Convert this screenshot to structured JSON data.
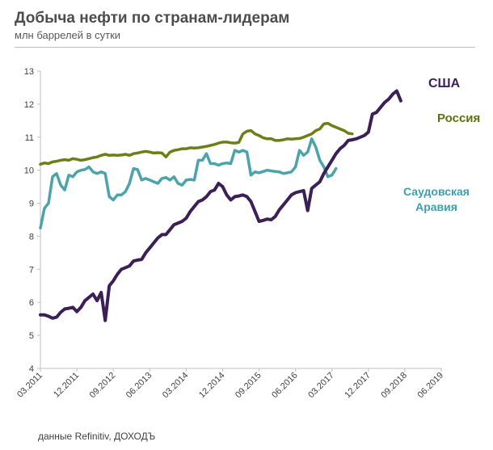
{
  "header": {
    "title": "Добыча нефти по странам-лидерам",
    "subtitle": "млн баррелей в сутки"
  },
  "footer": {
    "source": "данные  Refinitiv, ДОХОДЪ"
  },
  "chart_data": {
    "type": "line",
    "title": "Добыча нефти по странам-лидерам",
    "ylabel": "млн баррелей в сутки",
    "xlabel": "",
    "ylim": [
      4,
      13
    ],
    "yticks": [
      "4",
      "5",
      "6",
      "7",
      "8",
      "9",
      "10",
      "11",
      "12",
      "13"
    ],
    "xrange": [
      0,
      99
    ],
    "xticks": [
      {
        "label": "03.2011",
        "x": 0
      },
      {
        "label": "12.2011",
        "x": 9
      },
      {
        "label": "09.2012",
        "x": 18
      },
      {
        "label": "06.2013",
        "x": 27
      },
      {
        "label": "03.2014",
        "x": 36
      },
      {
        "label": "12.2014",
        "x": 45
      },
      {
        "label": "09.2015",
        "x": 54
      },
      {
        "label": "06.2016",
        "x": 63
      },
      {
        "label": "03.2017",
        "x": 72
      },
      {
        "label": "12.2017",
        "x": 81
      },
      {
        "label": "09.2018",
        "x": 90
      },
      {
        "label": "06.2019",
        "x": 99
      }
    ],
    "series": [
      {
        "name": "США",
        "color": "#3b1f56",
        "label_color": "#3b1f56",
        "points": [
          [
            0,
            5.62
          ],
          [
            1,
            5.62
          ],
          [
            2,
            5.58
          ],
          [
            3,
            5.52
          ],
          [
            4,
            5.55
          ],
          [
            5,
            5.7
          ],
          [
            6,
            5.8
          ],
          [
            7,
            5.82
          ],
          [
            8,
            5.85
          ],
          [
            9,
            5.72
          ],
          [
            10,
            5.85
          ],
          [
            11,
            6.05
          ],
          [
            12,
            6.15
          ],
          [
            13,
            6.25
          ],
          [
            14,
            6.05
          ],
          [
            15,
            6.3
          ],
          [
            16,
            5.45
          ],
          [
            17,
            6.5
          ],
          [
            18,
            6.65
          ],
          [
            19,
            6.85
          ],
          [
            20,
            7.0
          ],
          [
            21,
            7.05
          ],
          [
            22,
            7.1
          ],
          [
            23,
            7.25
          ],
          [
            24,
            7.28
          ],
          [
            25,
            7.3
          ],
          [
            26,
            7.5
          ],
          [
            27,
            7.65
          ],
          [
            28,
            7.8
          ],
          [
            29,
            7.95
          ],
          [
            30,
            8.05
          ],
          [
            31,
            8.05
          ],
          [
            32,
            8.2
          ],
          [
            33,
            8.35
          ],
          [
            34,
            8.4
          ],
          [
            35,
            8.45
          ],
          [
            36,
            8.55
          ],
          [
            37,
            8.75
          ],
          [
            38,
            8.9
          ],
          [
            39,
            9.05
          ],
          [
            40,
            9.1
          ],
          [
            41,
            9.2
          ],
          [
            42,
            9.35
          ],
          [
            43,
            9.4
          ],
          [
            44,
            9.6
          ],
          [
            45,
            9.5
          ],
          [
            46,
            9.25
          ],
          [
            47,
            9.1
          ],
          [
            48,
            9.2
          ],
          [
            49,
            9.22
          ],
          [
            50,
            9.25
          ],
          [
            51,
            9.2
          ],
          [
            52,
            9.05
          ],
          [
            53,
            8.75
          ],
          [
            54,
            8.45
          ],
          [
            55,
            8.48
          ],
          [
            56,
            8.52
          ],
          [
            57,
            8.5
          ],
          [
            58,
            8.6
          ],
          [
            59,
            8.8
          ],
          [
            60,
            8.95
          ],
          [
            61,
            9.1
          ],
          [
            62,
            9.25
          ],
          [
            63,
            9.32
          ],
          [
            64,
            9.35
          ],
          [
            65,
            9.38
          ],
          [
            66,
            8.78
          ],
          [
            67,
            9.45
          ],
          [
            68,
            9.55
          ],
          [
            69,
            9.65
          ],
          [
            70,
            9.9
          ],
          [
            71,
            10.1
          ],
          [
            72,
            10.3
          ],
          [
            73,
            10.5
          ],
          [
            74,
            10.65
          ],
          [
            75,
            10.75
          ],
          [
            76,
            10.9
          ],
          [
            77,
            10.92
          ],
          [
            78,
            10.95
          ],
          [
            79,
            11.0
          ],
          [
            80,
            11.05
          ],
          [
            81,
            11.15
          ],
          [
            82,
            11.7
          ],
          [
            83,
            11.75
          ],
          [
            84,
            11.9
          ],
          [
            85,
            12.05
          ],
          [
            86,
            12.15
          ],
          [
            87,
            12.3
          ],
          [
            88,
            12.4
          ],
          [
            89,
            12.1
          ]
        ]
      },
      {
        "name": "Россия",
        "color": "#6b7f16",
        "label_color": "#5c7010",
        "points": [
          [
            0,
            10.18
          ],
          [
            1,
            10.22
          ],
          [
            2,
            10.2
          ],
          [
            3,
            10.25
          ],
          [
            4,
            10.27
          ],
          [
            5,
            10.3
          ],
          [
            6,
            10.32
          ],
          [
            7,
            10.3
          ],
          [
            8,
            10.35
          ],
          [
            9,
            10.33
          ],
          [
            10,
            10.3
          ],
          [
            11,
            10.32
          ],
          [
            12,
            10.35
          ],
          [
            13,
            10.38
          ],
          [
            14,
            10.4
          ],
          [
            15,
            10.45
          ],
          [
            16,
            10.48
          ],
          [
            17,
            10.45
          ],
          [
            18,
            10.46
          ],
          [
            19,
            10.45
          ],
          [
            20,
            10.46
          ],
          [
            21,
            10.48
          ],
          [
            22,
            10.45
          ],
          [
            23,
            10.5
          ],
          [
            24,
            10.52
          ],
          [
            25,
            10.55
          ],
          [
            26,
            10.57
          ],
          [
            27,
            10.55
          ],
          [
            28,
            10.52
          ],
          [
            29,
            10.53
          ],
          [
            30,
            10.52
          ],
          [
            31,
            10.4
          ],
          [
            32,
            10.55
          ],
          [
            33,
            10.6
          ],
          [
            34,
            10.62
          ],
          [
            35,
            10.65
          ],
          [
            36,
            10.65
          ],
          [
            37,
            10.68
          ],
          [
            38,
            10.67
          ],
          [
            39,
            10.68
          ],
          [
            40,
            10.7
          ],
          [
            41,
            10.72
          ],
          [
            42,
            10.75
          ],
          [
            43,
            10.78
          ],
          [
            44,
            10.82
          ],
          [
            45,
            10.85
          ],
          [
            46,
            10.85
          ],
          [
            47,
            10.83
          ],
          [
            48,
            10.82
          ],
          [
            49,
            10.84
          ],
          [
            50,
            11.1
          ],
          [
            51,
            11.18
          ],
          [
            52,
            11.2
          ],
          [
            53,
            11.1
          ],
          [
            54,
            11.05
          ],
          [
            55,
            10.98
          ],
          [
            56,
            10.95
          ],
          [
            57,
            10.95
          ],
          [
            58,
            10.9
          ],
          [
            59,
            10.9
          ],
          [
            60,
            10.92
          ],
          [
            61,
            10.95
          ],
          [
            62,
            10.94
          ],
          [
            63,
            10.95
          ],
          [
            64,
            10.96
          ],
          [
            65,
            11.0
          ],
          [
            66,
            11.05
          ],
          [
            67,
            11.1
          ],
          [
            68,
            11.2
          ],
          [
            69,
            11.25
          ],
          [
            70,
            11.4
          ],
          [
            71,
            11.42
          ],
          [
            72,
            11.35
          ],
          [
            73,
            11.3
          ],
          [
            74,
            11.25
          ],
          [
            75,
            11.2
          ],
          [
            76,
            11.12
          ],
          [
            77,
            11.1
          ]
        ]
      },
      {
        "name": "Саудовская Аравия",
        "color": "#4ba3ab",
        "label_color": "#3fa0ad",
        "points": [
          [
            0,
            8.25
          ],
          [
            1,
            8.85
          ],
          [
            2,
            9.0
          ],
          [
            3,
            9.8
          ],
          [
            4,
            9.9
          ],
          [
            5,
            9.55
          ],
          [
            6,
            9.4
          ],
          [
            7,
            9.85
          ],
          [
            8,
            9.8
          ],
          [
            9,
            9.95
          ],
          [
            10,
            10.0
          ],
          [
            11,
            10.02
          ],
          [
            12,
            10.1
          ],
          [
            13,
            9.95
          ],
          [
            14,
            9.9
          ],
          [
            15,
            9.95
          ],
          [
            16,
            9.9
          ],
          [
            17,
            9.2
          ],
          [
            18,
            9.1
          ],
          [
            19,
            9.25
          ],
          [
            20,
            9.25
          ],
          [
            21,
            9.35
          ],
          [
            22,
            9.6
          ],
          [
            23,
            10.05
          ],
          [
            24,
            10.02
          ],
          [
            25,
            9.7
          ],
          [
            26,
            9.75
          ],
          [
            27,
            9.7
          ],
          [
            28,
            9.65
          ],
          [
            29,
            9.6
          ],
          [
            30,
            9.75
          ],
          [
            31,
            9.78
          ],
          [
            32,
            9.7
          ],
          [
            33,
            9.8
          ],
          [
            34,
            9.6
          ],
          [
            35,
            9.55
          ],
          [
            36,
            9.7
          ],
          [
            37,
            9.72
          ],
          [
            38,
            9.7
          ],
          [
            39,
            10.3
          ],
          [
            40,
            10.3
          ],
          [
            41,
            10.5
          ],
          [
            42,
            10.2
          ],
          [
            43,
            10.2
          ],
          [
            44,
            10.15
          ],
          [
            45,
            10.2
          ],
          [
            46,
            10.22
          ],
          [
            47,
            10.2
          ],
          [
            48,
            10.6
          ],
          [
            49,
            10.55
          ],
          [
            50,
            10.6
          ],
          [
            51,
            10.55
          ],
          [
            52,
            9.85
          ],
          [
            53,
            9.95
          ],
          [
            54,
            9.92
          ],
          [
            55,
            9.96
          ],
          [
            56,
            10.0
          ],
          [
            57,
            9.98
          ],
          [
            58,
            9.96
          ],
          [
            59,
            9.95
          ],
          [
            60,
            9.9
          ],
          [
            61,
            9.92
          ],
          [
            62,
            9.95
          ],
          [
            63,
            10.1
          ],
          [
            64,
            10.6
          ],
          [
            65,
            10.45
          ],
          [
            66,
            10.55
          ],
          [
            67,
            10.95
          ],
          [
            68,
            10.7
          ],
          [
            69,
            10.3
          ],
          [
            70,
            10.1
          ],
          [
            71,
            9.8
          ],
          [
            72,
            9.85
          ],
          [
            73,
            10.05
          ]
        ]
      }
    ],
    "series_labels": [
      {
        "text": "США",
        "series": 0
      },
      {
        "text": "Россия",
        "series": 1
      },
      {
        "text": "Саудовская",
        "series": 2
      },
      {
        "text": "Аравия",
        "series": 2
      }
    ]
  }
}
